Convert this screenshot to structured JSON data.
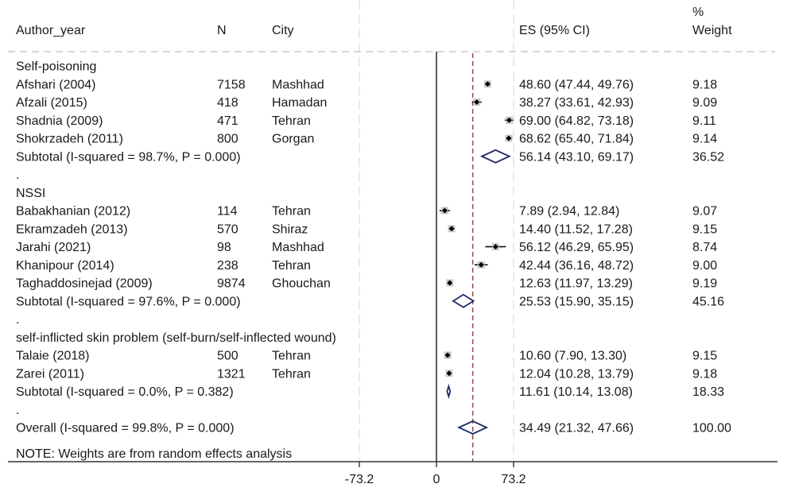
{
  "chart_data": {
    "type": "forest",
    "title": "",
    "columns": {
      "author": "Author_year",
      "n": "N",
      "city": "City",
      "es": "ES (95% CI)",
      "weight_line1": "%",
      "weight_line2": "Weight"
    },
    "x_axis": {
      "ticks": [
        -73.2,
        0,
        73.2
      ],
      "tick_labels": [
        "-73.2",
        "0",
        "73.2"
      ],
      "range": [
        -73.2,
        300
      ],
      "null_line": 0,
      "overall_line": 34.49
    },
    "rows": [
      {
        "kind": "group",
        "label": "Self-poisoning"
      },
      {
        "kind": "study",
        "label": "Afshari (2004)",
        "n": "7158",
        "city": "Mashhad",
        "es": 48.6,
        "lo": 47.44,
        "hi": 49.76,
        "es_text": "48.60 (47.44, 49.76)",
        "weight": "9.18"
      },
      {
        "kind": "study",
        "label": "Afzali (2015)",
        "n": "418",
        "city": "Hamadan",
        "es": 38.27,
        "lo": 33.61,
        "hi": 42.93,
        "es_text": "38.27 (33.61, 42.93)",
        "weight": "9.09"
      },
      {
        "kind": "study",
        "label": "Shadnia (2009)",
        "n": "471",
        "city": "Tehran",
        "es": 69.0,
        "lo": 64.82,
        "hi": 73.18,
        "es_text": "69.00 (64.82, 73.18)",
        "weight": "9.11"
      },
      {
        "kind": "study",
        "label": "Shokrzadeh (2011)",
        "n": "800",
        "city": "Gorgan",
        "es": 68.62,
        "lo": 65.4,
        "hi": 71.84,
        "es_text": "68.62 (65.40, 71.84)",
        "weight": "9.14"
      },
      {
        "kind": "subtotal",
        "label": "Subtotal  (I-squared = 98.7%, P = 0.000)",
        "es": 56.14,
        "lo": 43.1,
        "hi": 69.17,
        "es_text": "56.14 (43.10, 69.17)",
        "weight": "36.52"
      },
      {
        "kind": "spacer",
        "label": "."
      },
      {
        "kind": "group",
        "label": "NSSI"
      },
      {
        "kind": "study",
        "label": "Babakhanian (2012)",
        "n": "114",
        "city": "Tehran",
        "es": 7.89,
        "lo": 2.94,
        "hi": 12.84,
        "es_text": "7.89 (2.94, 12.84)",
        "weight": "9.07"
      },
      {
        "kind": "study",
        "label": "Ekramzadeh (2013)",
        "n": "570",
        "city": "Shiraz",
        "es": 14.4,
        "lo": 11.52,
        "hi": 17.28,
        "es_text": "14.40 (11.52, 17.28)",
        "weight": "9.15"
      },
      {
        "kind": "study",
        "label": "Jarahi (2021)",
        "n": "98",
        "city": "Mashhad",
        "es": 56.12,
        "lo": 46.29,
        "hi": 65.95,
        "es_text": "56.12 (46.29, 65.95)",
        "weight": "8.74"
      },
      {
        "kind": "study",
        "label": "Khanipour (2014)",
        "n": "238",
        "city": "Tehran",
        "es": 42.44,
        "lo": 36.16,
        "hi": 48.72,
        "es_text": "42.44 (36.16, 48.72)",
        "weight": "9.00"
      },
      {
        "kind": "study",
        "label": "Taghaddosinejad (2009)",
        "n": "9874",
        "city": "Ghouchan",
        "es": 12.63,
        "lo": 11.97,
        "hi": 13.29,
        "es_text": "12.63 (11.97, 13.29)",
        "weight": "9.19"
      },
      {
        "kind": "subtotal",
        "label": "Subtotal  (I-squared = 97.6%, P = 0.000)",
        "es": 25.53,
        "lo": 15.9,
        "hi": 35.15,
        "es_text": "25.53 (15.90, 35.15)",
        "weight": "45.16"
      },
      {
        "kind": "spacer",
        "label": "."
      },
      {
        "kind": "group",
        "label": "self-inflicted skin problem (self-burn/self-inflected wound)"
      },
      {
        "kind": "study",
        "label": "Talaie (2018)",
        "n": "500",
        "city": "Tehran",
        "es": 10.6,
        "lo": 7.9,
        "hi": 13.3,
        "es_text": "10.60 (7.90, 13.30)",
        "weight": "9.15"
      },
      {
        "kind": "study",
        "label": "Zarei (2011)",
        "n": "1321",
        "city": "Tehran",
        "es": 12.04,
        "lo": 10.28,
        "hi": 13.79,
        "es_text": "12.04 (10.28, 13.79)",
        "weight": "9.18"
      },
      {
        "kind": "subtotal",
        "label": "Subtotal  (I-squared = 0.0%, P = 0.382)",
        "es": 11.61,
        "lo": 10.14,
        "hi": 13.08,
        "es_text": "11.61 (10.14, 13.08)",
        "weight": "18.33"
      },
      {
        "kind": "spacer",
        "label": "."
      },
      {
        "kind": "overall",
        "label": "Overall  (I-squared = 99.8%, P = 0.000)",
        "es": 34.49,
        "lo": 21.32,
        "hi": 47.66,
        "es_text": "34.49 (21.32, 47.66)",
        "weight": "100.00"
      }
    ],
    "note": "NOTE: Weights are from random effects analysis",
    "colors": {
      "text": "#1a1a1a",
      "axis": "#333333",
      "overall_line": "#8b3a3a",
      "diamond": "#1f2a6b",
      "marker": "#000000",
      "weight_box": "#bdbdbd",
      "gridline": "#e3e3e3"
    }
  }
}
